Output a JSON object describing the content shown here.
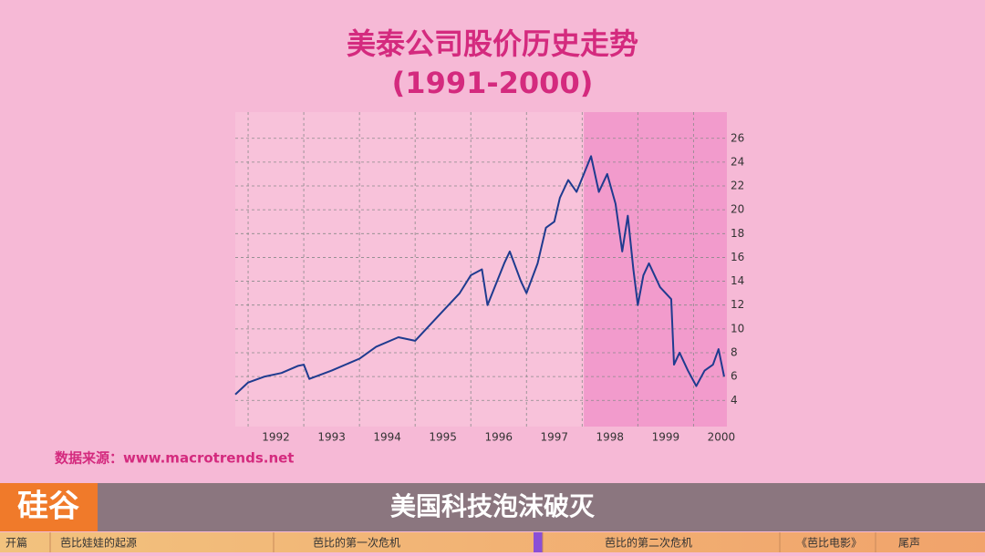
{
  "chart_data": {
    "type": "line",
    "title": "美泰公司股价历史走势",
    "subtitle": "(1991-2000)",
    "x": [
      1991.77,
      1992.0,
      1992.3,
      1992.6,
      1992.9,
      1993.0,
      1993.1,
      1993.5,
      1994.0,
      1994.3,
      1994.7,
      1995.0,
      1995.2,
      1995.5,
      1995.8,
      1996.0,
      1996.2,
      1996.3,
      1996.6,
      1996.7,
      1996.9,
      1997.0,
      1997.2,
      1997.35,
      1997.5,
      1997.6,
      1997.75,
      1997.9,
      1998.16,
      1998.3,
      1998.45,
      1998.6,
      1998.72,
      1998.82,
      1998.92,
      1999.0,
      1999.1,
      1999.2,
      1999.4,
      1999.6,
      1999.65,
      1999.75,
      1999.9,
      2000.05,
      2000.2,
      2000.35,
      2000.45,
      2000.55
    ],
    "values": [
      4.5,
      5.5,
      6.0,
      6.3,
      6.9,
      7.0,
      5.8,
      6.5,
      7.5,
      8.5,
      9.3,
      9.0,
      10.0,
      11.5,
      13.0,
      14.5,
      15.0,
      12.0,
      15.5,
      16.5,
      14.0,
      13.0,
      15.5,
      18.5,
      19.0,
      21.0,
      22.5,
      21.5,
      24.5,
      21.5,
      23.0,
      20.5,
      16.5,
      19.5,
      15.0,
      12.0,
      14.5,
      15.5,
      13.5,
      12.5,
      7.0,
      8.0,
      6.5,
      5.2,
      6.5,
      7.0,
      8.3,
      6.0
    ],
    "color": "#1f3b8f",
    "xlim": [
      1991.77,
      2000.6
    ],
    "ylim": [
      1.8,
      28.2
    ],
    "xticks": [
      1992,
      1993,
      1994,
      1995,
      1996,
      1997,
      1998,
      1999,
      2000
    ],
    "yticks": [
      4,
      6,
      8,
      10,
      12,
      14,
      16,
      18,
      20,
      22,
      24,
      26
    ],
    "grid": true,
    "shaded_range": [
      1998.03,
      2000.6
    ]
  },
  "source": "数据来源：www.macrotrends.net",
  "logo": "硅谷",
  "caption": "美国科技泡沫破灭",
  "chapters": [
    "开篇",
    "芭比娃娃的起源",
    "芭比的第一次危机",
    "芭比的第二次危机",
    "《芭比电影》",
    "尾声"
  ]
}
